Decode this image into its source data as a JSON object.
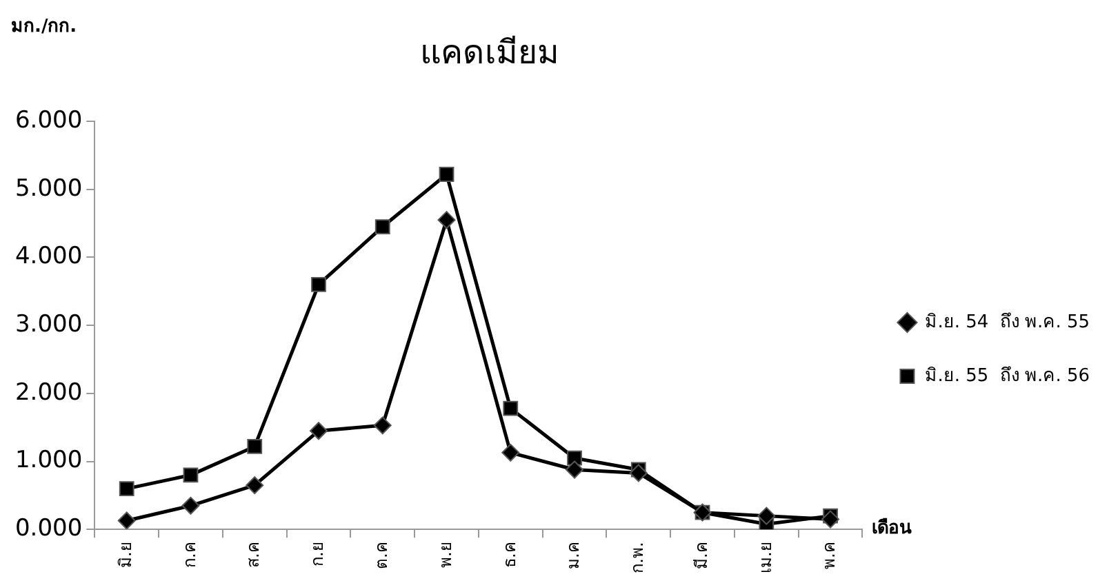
{
  "chart_data": {
    "type": "line",
    "title": "แคดเมียม",
    "ylabel": "มก./กก.",
    "xlabel": "เดือน",
    "categories": [
      "มิ.ย",
      "ก.ค",
      "ส.ค",
      "ก.ย",
      "ต.ค",
      "พ.ย",
      "ธ.ค",
      "ม.ค",
      "ก.พ.",
      "มี.ค",
      "เม.ย",
      "พ.ค"
    ],
    "series": [
      {
        "name": "มิ.ย. 54  ถึง พ.ค. 55",
        "color": "#000000",
        "marker": "diamond",
        "values": [
          0.13,
          0.35,
          0.65,
          1.45,
          1.53,
          4.55,
          1.13,
          0.88,
          0.83,
          0.25,
          0.2,
          0.15
        ]
      },
      {
        "name": "มิ.ย. 55  ถึง พ.ค. 56",
        "color": "#000000",
        "marker": "square",
        "values": [
          0.6,
          0.8,
          1.22,
          3.6,
          4.45,
          5.22,
          1.78,
          1.05,
          0.88,
          0.25,
          0.08,
          0.2
        ]
      }
    ],
    "ylim": [
      0,
      6
    ],
    "yticks": [
      {
        "value": 0,
        "label": "0.000"
      },
      {
        "value": 1,
        "label": "1.000"
      },
      {
        "value": 2,
        "label": "2.000"
      },
      {
        "value": 3,
        "label": "3.000"
      },
      {
        "value": 4,
        "label": "4.000"
      },
      {
        "value": 5,
        "label": "5.000"
      },
      {
        "value": 6,
        "label": "6.000"
      }
    ],
    "grid": false,
    "legend": "right",
    "line_style": "solid"
  }
}
